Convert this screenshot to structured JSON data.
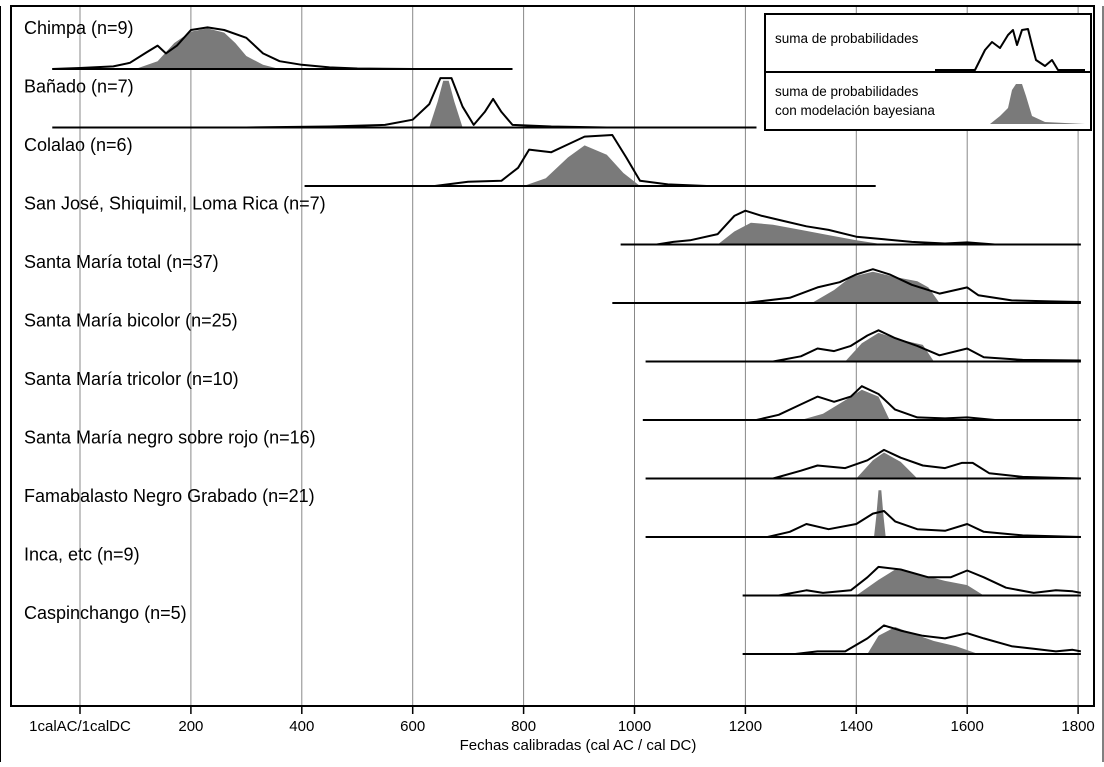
{
  "chart_data": {
    "type": "area",
    "title": "",
    "xlabel": "Fechas calibradas (cal AC / cal DC)",
    "ylabel": "",
    "xlim": [
      -50,
      1805
    ],
    "x_ticks": [
      {
        "value": 0,
        "label": "1calAC/1calDC"
      },
      {
        "value": 200,
        "label": "200"
      },
      {
        "value": 400,
        "label": "400"
      },
      {
        "value": 600,
        "label": "600"
      },
      {
        "value": 800,
        "label": "800"
      },
      {
        "value": 1000,
        "label": "1000"
      },
      {
        "value": 1200,
        "label": "1200"
      },
      {
        "value": 1400,
        "label": "1400"
      },
      {
        "value": 1600,
        "label": "1600"
      },
      {
        "value": 1800,
        "label": "1800"
      }
    ],
    "grid": true,
    "legend": {
      "placement": "top-right",
      "items": [
        {
          "label": "suma de probabilidades",
          "style": "outline"
        },
        {
          "label_line1": "suma de probabilidades",
          "label_line2": "con modelación bayesiana",
          "style": "filled"
        }
      ]
    },
    "colors": {
      "outline": "#000000",
      "filled": "#7a7a7a",
      "grid": "#888888"
    },
    "rows": [
      {
        "label": "Chimpa (n=9)",
        "x_range": [
          -50,
          780
        ],
        "outline": [
          [
            -50,
            0
          ],
          [
            0,
            0.02
          ],
          [
            60,
            0.05
          ],
          [
            90,
            0.12
          ],
          [
            120,
            0.32
          ],
          [
            140,
            0.45
          ],
          [
            155,
            0.3
          ],
          [
            175,
            0.45
          ],
          [
            200,
            0.75
          ],
          [
            230,
            0.8
          ],
          [
            260,
            0.75
          ],
          [
            300,
            0.6
          ],
          [
            330,
            0.3
          ],
          [
            360,
            0.15
          ],
          [
            400,
            0.08
          ],
          [
            450,
            0.03
          ],
          [
            500,
            0.01
          ],
          [
            600,
            0
          ]
        ],
        "modeled": [
          [
            100,
            0
          ],
          [
            140,
            0.15
          ],
          [
            170,
            0.5
          ],
          [
            200,
            0.72
          ],
          [
            230,
            0.78
          ],
          [
            260,
            0.7
          ],
          [
            280,
            0.5
          ],
          [
            300,
            0.25
          ],
          [
            330,
            0.08
          ],
          [
            360,
            0
          ]
        ]
      },
      {
        "label": "Bañado (n=7)",
        "x_range": [
          -50,
          1220
        ],
        "outline": [
          [
            300,
            0
          ],
          [
            450,
            0.02
          ],
          [
            550,
            0.05
          ],
          [
            600,
            0.15
          ],
          [
            630,
            0.45
          ],
          [
            650,
            0.95
          ],
          [
            670,
            0.95
          ],
          [
            690,
            0.4
          ],
          [
            710,
            0.05
          ],
          [
            730,
            0.3
          ],
          [
            745,
            0.55
          ],
          [
            760,
            0.3
          ],
          [
            780,
            0.05
          ],
          [
            850,
            0.02
          ],
          [
            950,
            0
          ]
        ],
        "modeled": [
          [
            630,
            0
          ],
          [
            645,
            0.5
          ],
          [
            655,
            0.9
          ],
          [
            665,
            0.9
          ],
          [
            675,
            0.5
          ],
          [
            690,
            0
          ]
        ]
      },
      {
        "label": "Colalao (n=6)",
        "x_range": [
          405,
          1435
        ],
        "outline": [
          [
            640,
            0
          ],
          [
            700,
            0.08
          ],
          [
            760,
            0.1
          ],
          [
            790,
            0.35
          ],
          [
            810,
            0.7
          ],
          [
            850,
            0.65
          ],
          [
            880,
            0.8
          ],
          [
            910,
            0.95
          ],
          [
            960,
            0.98
          ],
          [
            985,
            0.55
          ],
          [
            1010,
            0.1
          ],
          [
            1060,
            0.03
          ],
          [
            1130,
            0
          ]
        ],
        "modeled": [
          [
            800,
            0
          ],
          [
            840,
            0.15
          ],
          [
            880,
            0.55
          ],
          [
            910,
            0.78
          ],
          [
            950,
            0.6
          ],
          [
            980,
            0.25
          ],
          [
            1010,
            0
          ]
        ]
      },
      {
        "label": "San José, Shiquimil, Loma Rica (n=7)",
        "x_range": [
          975,
          1805
        ],
        "outline": [
          [
            1040,
            0
          ],
          [
            1070,
            0.05
          ],
          [
            1100,
            0.08
          ],
          [
            1150,
            0.2
          ],
          [
            1180,
            0.55
          ],
          [
            1200,
            0.65
          ],
          [
            1230,
            0.55
          ],
          [
            1270,
            0.45
          ],
          [
            1310,
            0.35
          ],
          [
            1350,
            0.28
          ],
          [
            1400,
            0.15
          ],
          [
            1450,
            0.1
          ],
          [
            1500,
            0.05
          ],
          [
            1560,
            0.02
          ],
          [
            1600,
            0.04
          ],
          [
            1650,
            0
          ]
        ],
        "modeled": [
          [
            1150,
            0
          ],
          [
            1180,
            0.25
          ],
          [
            1210,
            0.42
          ],
          [
            1250,
            0.38
          ],
          [
            1300,
            0.28
          ],
          [
            1350,
            0.18
          ],
          [
            1400,
            0.08
          ],
          [
            1450,
            0
          ]
        ]
      },
      {
        "label": "Santa María total (n=37)",
        "x_range": [
          960,
          1805
        ],
        "outline": [
          [
            1200,
            0
          ],
          [
            1280,
            0.1
          ],
          [
            1330,
            0.3
          ],
          [
            1370,
            0.4
          ],
          [
            1400,
            0.55
          ],
          [
            1430,
            0.65
          ],
          [
            1460,
            0.55
          ],
          [
            1500,
            0.35
          ],
          [
            1550,
            0.18
          ],
          [
            1600,
            0.3
          ],
          [
            1620,
            0.15
          ],
          [
            1680,
            0.05
          ],
          [
            1750,
            0.03
          ],
          [
            1805,
            0.02
          ]
        ],
        "modeled": [
          [
            1320,
            0
          ],
          [
            1360,
            0.25
          ],
          [
            1390,
            0.5
          ],
          [
            1430,
            0.6
          ],
          [
            1470,
            0.5
          ],
          [
            1510,
            0.42
          ],
          [
            1530,
            0.3
          ],
          [
            1550,
            0
          ]
        ]
      },
      {
        "label": "Santa María bicolor (n=25)",
        "x_range": [
          1020,
          1805
        ],
        "outline": [
          [
            1250,
            0
          ],
          [
            1300,
            0.1
          ],
          [
            1330,
            0.25
          ],
          [
            1360,
            0.2
          ],
          [
            1390,
            0.3
          ],
          [
            1420,
            0.5
          ],
          [
            1440,
            0.6
          ],
          [
            1470,
            0.45
          ],
          [
            1510,
            0.3
          ],
          [
            1550,
            0.12
          ],
          [
            1600,
            0.25
          ],
          [
            1630,
            0.08
          ],
          [
            1700,
            0.03
          ],
          [
            1805,
            0.02
          ]
        ],
        "modeled": [
          [
            1380,
            0
          ],
          [
            1410,
            0.35
          ],
          [
            1440,
            0.55
          ],
          [
            1480,
            0.42
          ],
          [
            1520,
            0.32
          ],
          [
            1540,
            0
          ]
        ]
      },
      {
        "label": "Santa María tricolor (n=10)",
        "x_range": [
          1015,
          1805
        ],
        "outline": [
          [
            1220,
            0
          ],
          [
            1260,
            0.1
          ],
          [
            1300,
            0.3
          ],
          [
            1330,
            0.45
          ],
          [
            1360,
            0.35
          ],
          [
            1390,
            0.45
          ],
          [
            1410,
            0.65
          ],
          [
            1440,
            0.5
          ],
          [
            1470,
            0.2
          ],
          [
            1510,
            0.05
          ],
          [
            1560,
            0.03
          ],
          [
            1600,
            0.05
          ],
          [
            1650,
            0
          ]
        ],
        "modeled": [
          [
            1300,
            0
          ],
          [
            1340,
            0.12
          ],
          [
            1380,
            0.38
          ],
          [
            1410,
            0.58
          ],
          [
            1440,
            0.45
          ],
          [
            1460,
            0
          ]
        ]
      },
      {
        "label": "Santa María negro sobre rojo (n=16)",
        "x_range": [
          1020,
          1805
        ],
        "outline": [
          [
            1250,
            0
          ],
          [
            1300,
            0.15
          ],
          [
            1330,
            0.25
          ],
          [
            1380,
            0.2
          ],
          [
            1420,
            0.35
          ],
          [
            1450,
            0.55
          ],
          [
            1480,
            0.4
          ],
          [
            1520,
            0.25
          ],
          [
            1560,
            0.2
          ],
          [
            1590,
            0.3
          ],
          [
            1610,
            0.3
          ],
          [
            1640,
            0.1
          ],
          [
            1700,
            0.03
          ],
          [
            1805,
            0
          ]
        ],
        "modeled": [
          [
            1400,
            0
          ],
          [
            1430,
            0.35
          ],
          [
            1450,
            0.5
          ],
          [
            1480,
            0.32
          ],
          [
            1510,
            0
          ]
        ]
      },
      {
        "label": "Famabalasto Negro Grabado (n=21)",
        "x_range": [
          1020,
          1805
        ],
        "outline": [
          [
            1240,
            0
          ],
          [
            1280,
            0.1
          ],
          [
            1310,
            0.25
          ],
          [
            1350,
            0.15
          ],
          [
            1400,
            0.25
          ],
          [
            1430,
            0.45
          ],
          [
            1450,
            0.5
          ],
          [
            1470,
            0.3
          ],
          [
            1510,
            0.15
          ],
          [
            1560,
            0.12
          ],
          [
            1600,
            0.25
          ],
          [
            1630,
            0.1
          ],
          [
            1700,
            0.03
          ],
          [
            1805,
            0
          ]
        ],
        "modeled": [
          [
            1432,
            0
          ],
          [
            1436,
            0.4
          ],
          [
            1440,
            0.9
          ],
          [
            1445,
            0.9
          ],
          [
            1449,
            0.4
          ],
          [
            1453,
            0
          ]
        ]
      },
      {
        "label": "Inca, etc (n=9)",
        "x_range": [
          1195,
          1805
        ],
        "outline": [
          [
            1260,
            0
          ],
          [
            1310,
            0.1
          ],
          [
            1340,
            0.05
          ],
          [
            1390,
            0.1
          ],
          [
            1420,
            0.35
          ],
          [
            1440,
            0.55
          ],
          [
            1480,
            0.5
          ],
          [
            1530,
            0.35
          ],
          [
            1570,
            0.35
          ],
          [
            1600,
            0.48
          ],
          [
            1630,
            0.35
          ],
          [
            1670,
            0.15
          ],
          [
            1720,
            0.05
          ],
          [
            1760,
            0.1
          ],
          [
            1790,
            0.08
          ],
          [
            1805,
            0.05
          ]
        ],
        "modeled": [
          [
            1400,
            0
          ],
          [
            1440,
            0.3
          ],
          [
            1470,
            0.5
          ],
          [
            1510,
            0.42
          ],
          [
            1560,
            0.28
          ],
          [
            1600,
            0.2
          ],
          [
            1630,
            0
          ]
        ]
      },
      {
        "label": "Caspinchango (n=5)",
        "x_range": [
          1195,
          1805
        ],
        "outline": [
          [
            1290,
            0
          ],
          [
            1330,
            0.05
          ],
          [
            1380,
            0.05
          ],
          [
            1420,
            0.3
          ],
          [
            1450,
            0.55
          ],
          [
            1480,
            0.45
          ],
          [
            1520,
            0.35
          ],
          [
            1560,
            0.3
          ],
          [
            1600,
            0.4
          ],
          [
            1630,
            0.3
          ],
          [
            1680,
            0.15
          ],
          [
            1720,
            0.1
          ],
          [
            1760,
            0.05
          ],
          [
            1790,
            0.08
          ],
          [
            1805,
            0.05
          ]
        ],
        "modeled": [
          [
            1420,
            0
          ],
          [
            1440,
            0.35
          ],
          [
            1470,
            0.52
          ],
          [
            1500,
            0.4
          ],
          [
            1540,
            0.25
          ],
          [
            1580,
            0.15
          ],
          [
            1620,
            0
          ]
        ]
      }
    ]
  }
}
